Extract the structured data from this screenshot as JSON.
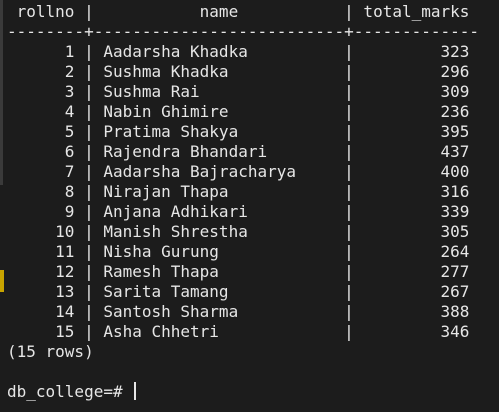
{
  "table": {
    "header": {
      "rollno": "rollno",
      "name": "name",
      "total_marks": "total_marks"
    },
    "separator": "--------+--------------------------+-------------",
    "rows": [
      {
        "rollno": "1",
        "name": "Aadarsha Khadka",
        "total_marks": "323"
      },
      {
        "rollno": "2",
        "name": "Sushma Khadka",
        "total_marks": "296"
      },
      {
        "rollno": "3",
        "name": "Sushma Rai",
        "total_marks": "309"
      },
      {
        "rollno": "4",
        "name": "Nabin Ghimire",
        "total_marks": "236"
      },
      {
        "rollno": "5",
        "name": "Pratima Shakya",
        "total_marks": "395"
      },
      {
        "rollno": "6",
        "name": "Rajendra Bhandari",
        "total_marks": "437"
      },
      {
        "rollno": "7",
        "name": "Aadarsha Bajracharya",
        "total_marks": "400"
      },
      {
        "rollno": "8",
        "name": "Nirajan Thapa",
        "total_marks": "316"
      },
      {
        "rollno": "9",
        "name": "Anjana Adhikari",
        "total_marks": "339"
      },
      {
        "rollno": "10",
        "name": "Manish Shrestha",
        "total_marks": "305"
      },
      {
        "rollno": "11",
        "name": "Nisha Gurung",
        "total_marks": "264"
      },
      {
        "rollno": "12",
        "name": "Ramesh Thapa",
        "total_marks": "277"
      },
      {
        "rollno": "13",
        "name": "Sarita Tamang",
        "total_marks": "267"
      },
      {
        "rollno": "14",
        "name": "Santosh Sharma",
        "total_marks": "388"
      },
      {
        "rollno": "15",
        "name": "Asha Chhetri",
        "total_marks": "346"
      }
    ],
    "row_count": "(15 rows)"
  },
  "prompt": "db_college=# "
}
